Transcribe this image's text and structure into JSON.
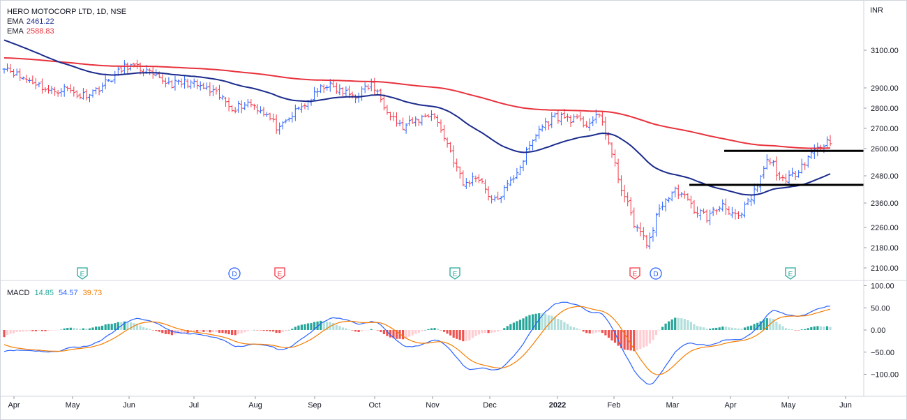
{
  "header": {
    "symbol_line": "HERO MOTOCORP LTD, 1D, NSE",
    "ema1_label": "EMA",
    "ema1_value": "2461.22",
    "ema2_label": "EMA",
    "ema2_value": "2588.83",
    "macd_label": "MACD",
    "macd_hist": "14.85",
    "macd_line": "54.57",
    "macd_signal": "39.73"
  },
  "colors": {
    "up": "#2962ff",
    "down": "#f23645",
    "ema_fast": "#1a2b8c",
    "ema_slow": "#e8323c",
    "macd_line": "#2962ff",
    "macd_signal": "#f57c00",
    "hist_up_strong": "#26a69a",
    "hist_up_weak": "#b2dfdb",
    "hist_down_strong": "#ef5350",
    "hist_down_weak": "#ffcdd2",
    "horizontal_lines": "#000000"
  },
  "chart_data": [
    {
      "type": "ohlc_bars",
      "title": "HERO MOTOCORP LTD, 1D, NSE",
      "currency": "INR",
      "y_ticks": [
        3100,
        2900,
        2800,
        2700,
        2600,
        2480,
        2360,
        2260,
        2180,
        2100
      ],
      "y_tick_labels": [
        "3100.00",
        "2900.00",
        "2800.00",
        "2700.00",
        "2600.00",
        "2480.00",
        "2360.00",
        "2260.00",
        "2180.00",
        "2100.00"
      ],
      "x_tick_labels": [
        "Apr",
        "May",
        "Jun",
        "Jul",
        "Aug",
        "Sep",
        "Oct",
        "Nov",
        "Dec",
        "2022",
        "Feb",
        "Mar",
        "Apr",
        "May",
        "Jun"
      ],
      "close_path": [
        [
          "Apr",
          3020
        ],
        [
          "Apr",
          2960
        ],
        [
          "Apr",
          2930
        ],
        [
          "May",
          2880
        ],
        [
          "May",
          2900
        ],
        [
          "May",
          2860
        ],
        [
          "May",
          2890
        ],
        [
          "Jun",
          2950
        ],
        [
          "Jun",
          3020
        ],
        [
          "Jun",
          3000
        ],
        [
          "Jun",
          2950
        ],
        [
          "Jul",
          2920
        ],
        [
          "Jul",
          2930
        ],
        [
          "Jul",
          2900
        ],
        [
          "Aug",
          2860
        ],
        [
          "Aug",
          2800
        ],
        [
          "Aug",
          2830
        ],
        [
          "Aug",
          2780
        ],
        [
          "Sep",
          2690
        ],
        [
          "Sep",
          2780
        ],
        [
          "Sep",
          2840
        ],
        [
          "Sep",
          2920
        ],
        [
          "Oct",
          2880
        ],
        [
          "Oct",
          2860
        ],
        [
          "Oct",
          2920
        ],
        [
          "Nov",
          2800
        ],
        [
          "Nov",
          2700
        ],
        [
          "Nov",
          2740
        ],
        [
          "Nov",
          2780
        ],
        [
          "Dec",
          2620
        ],
        [
          "Dec",
          2440
        ],
        [
          "Dec",
          2480
        ],
        [
          "Dec",
          2360
        ],
        [
          "2022",
          2440
        ],
        [
          "2022",
          2560
        ],
        [
          "2022",
          2700
        ],
        [
          "Feb",
          2760
        ],
        [
          "Feb",
          2750
        ],
        [
          "Feb",
          2720
        ],
        [
          "Feb",
          2760
        ],
        [
          "Mar",
          2500
        ],
        [
          "Mar",
          2300
        ],
        [
          "Mar",
          2190
        ],
        [
          "Mar",
          2360
        ],
        [
          "Mar",
          2420
        ],
        [
          "Apr",
          2340
        ],
        [
          "Apr",
          2300
        ],
        [
          "Apr",
          2360
        ],
        [
          "Apr",
          2290
        ],
        [
          "May",
          2400
        ],
        [
          "May",
          2560
        ],
        [
          "May",
          2440
        ],
        [
          "May",
          2520
        ],
        [
          "May",
          2600
        ],
        [
          "Jun",
          2640
        ]
      ],
      "ema_fast": {
        "label": "EMA",
        "last": 2461.22
      },
      "ema_slow": {
        "label": "EMA",
        "last": 2588.83
      },
      "horizontal_levels": [
        2590,
        2440
      ],
      "event_markers": [
        {
          "letter": "E",
          "month": "May",
          "kind": "earnings"
        },
        {
          "letter": "D",
          "month": "Jul",
          "kind": "dividend"
        },
        {
          "letter": "E",
          "month": "Aug",
          "kind": "earnings"
        },
        {
          "letter": "E",
          "month": "Nov",
          "kind": "earnings"
        },
        {
          "letter": "E",
          "month": "Feb",
          "kind": "earnings"
        },
        {
          "letter": "D",
          "month": "Feb",
          "kind": "dividend"
        },
        {
          "letter": "E",
          "month": "May",
          "kind": "earnings"
        }
      ]
    },
    {
      "type": "macd",
      "title": "MACD",
      "values": {
        "histogram": 14.85,
        "macd": 54.57,
        "signal": 39.73
      },
      "y_ticks": [
        100,
        50,
        0,
        -50,
        -100
      ],
      "y_tick_labels": [
        "100.00",
        "50.00",
        "0.00",
        "−50.00",
        "−100.00"
      ]
    }
  ]
}
